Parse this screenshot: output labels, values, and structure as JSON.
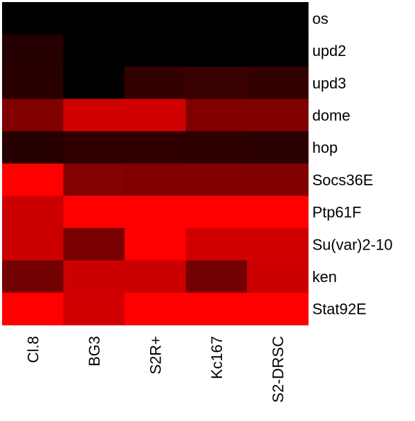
{
  "chart_data": {
    "type": "heatmap",
    "rows": [
      "os",
      "upd2",
      "upd3",
      "dome",
      "hop",
      "Socs36E",
      "Ptp61F",
      "Su(var)2-10",
      "ken",
      "Stat92E"
    ],
    "columns": [
      "Cl.8",
      "BG3",
      "S2R+",
      "Kc167",
      "S2-DRSC"
    ],
    "colormap": {
      "low": "#000000",
      "high": "#ff0000"
    },
    "values": [
      [
        0.0,
        0.0,
        0.0,
        0.0,
        0.0
      ],
      [
        0.15,
        0.0,
        0.0,
        0.0,
        0.0
      ],
      [
        0.16,
        0.0,
        0.2,
        0.22,
        0.2
      ],
      [
        0.5,
        0.82,
        0.82,
        0.5,
        0.5
      ],
      [
        0.15,
        0.19,
        0.19,
        0.18,
        0.17
      ],
      [
        1.0,
        0.52,
        0.5,
        0.5,
        0.5
      ],
      [
        0.8,
        1.0,
        1.0,
        1.0,
        1.0
      ],
      [
        0.8,
        0.47,
        1.0,
        0.82,
        0.82
      ],
      [
        0.45,
        0.8,
        0.8,
        0.45,
        0.8
      ],
      [
        1.0,
        0.82,
        1.0,
        1.0,
        1.0
      ]
    ]
  }
}
